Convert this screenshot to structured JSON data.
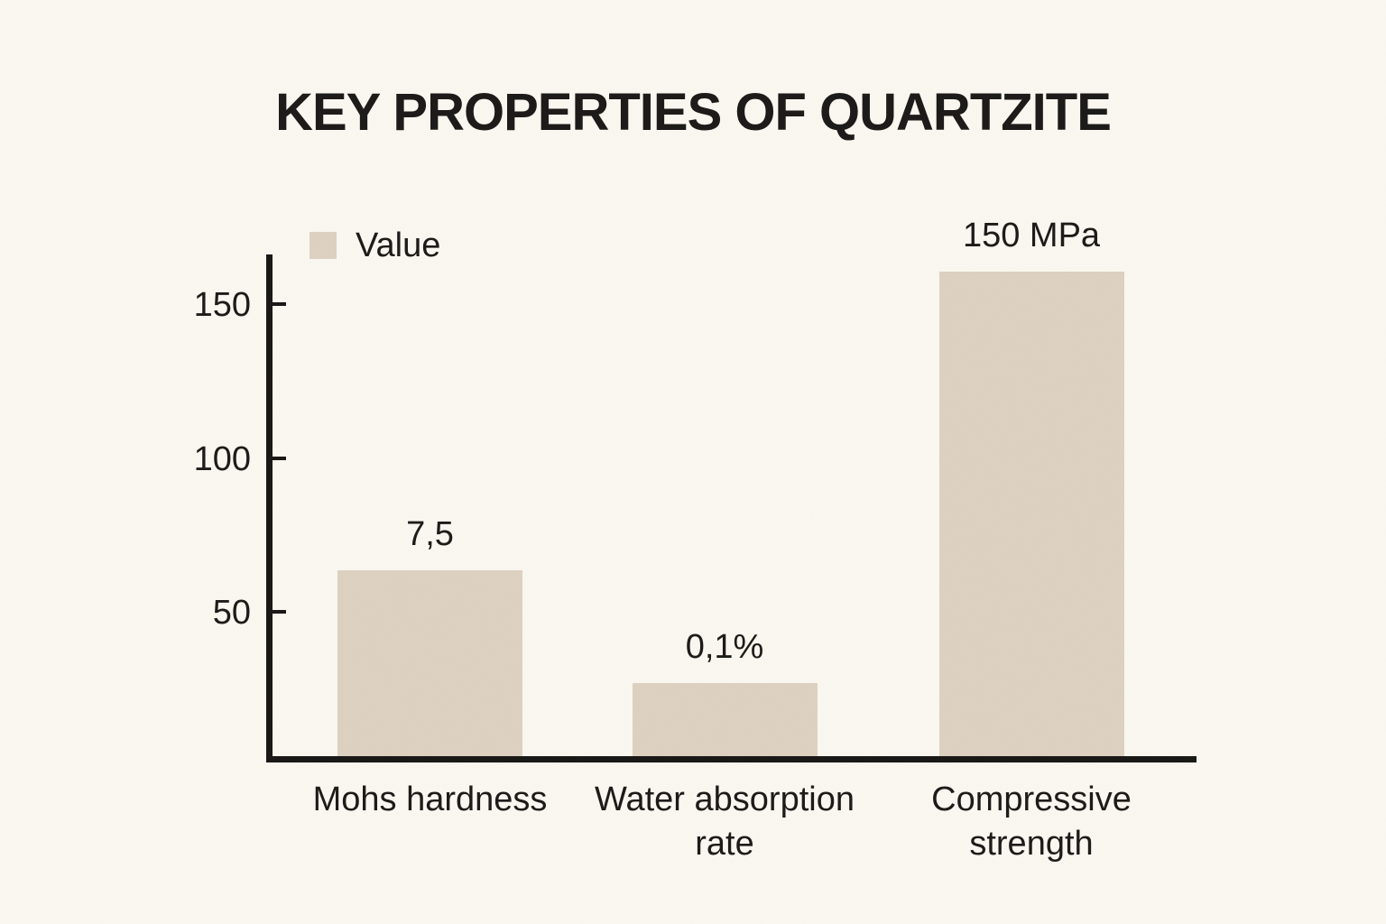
{
  "page": {
    "background": "#faf7f0",
    "ink": "#1c1a18",
    "axis_color": "#191715"
  },
  "title": "KEY PROPERTIES OF QUARTZITE",
  "legend": {
    "label": "Value",
    "swatch_color": "#ddd1c0"
  },
  "chart_data": {
    "type": "bar",
    "title": "KEY PROPERTIES OF QUARTZITE",
    "categories": [
      "Mohs hardness",
      "Water absorption rate",
      "Compressive strength"
    ],
    "series": [
      {
        "name": "Value",
        "values": [
          7.5,
          0.1,
          150
        ]
      }
    ],
    "value_labels": [
      "7,5",
      "0,1%",
      "150 MPa"
    ],
    "yticks": [
      50,
      100,
      150
    ],
    "ylim": [
      0,
      165
    ],
    "xlabel": "",
    "ylabel": "",
    "grid": false,
    "legend_position": "top-left",
    "bar_color": "#ddd1c0",
    "bars_not_to_scale_with_values": true,
    "drawn_bar_heights_axis_units": [
      60.5,
      23.8,
      157.5
    ]
  }
}
